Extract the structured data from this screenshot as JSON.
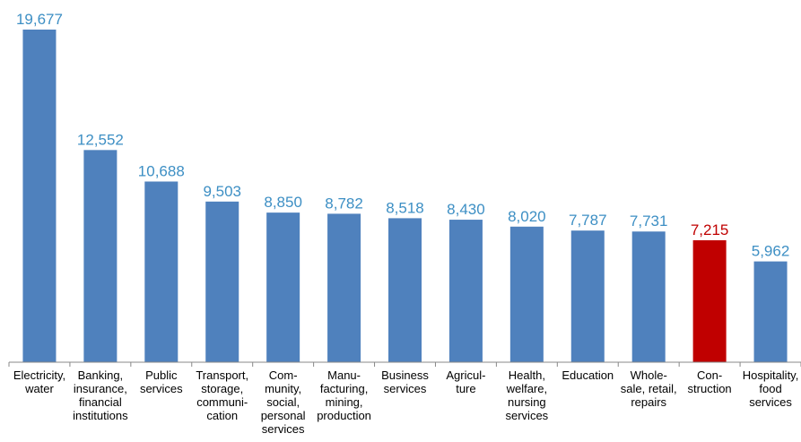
{
  "chart_data": {
    "type": "bar",
    "title": "",
    "xlabel": "",
    "ylabel": "",
    "ylim": [
      0,
      19677
    ],
    "grid": false,
    "legend": "none",
    "categories": [
      [
        "Electricity,",
        "water"
      ],
      [
        "Banking,",
        "insurance,",
        "financial",
        "institutions"
      ],
      [
        "Public",
        "services"
      ],
      [
        "Transport,",
        "storage,",
        "communi-",
        "cation"
      ],
      [
        "Com-",
        "munity,",
        "social,",
        "personal",
        "services"
      ],
      [
        "Manu-",
        "facturing,",
        "mining,",
        "production"
      ],
      [
        "Business",
        "services"
      ],
      [
        "Agricul-",
        "ture"
      ],
      [
        "Health,",
        "welfare,",
        "nursing",
        "services"
      ],
      [
        "Education"
      ],
      [
        "Whole-",
        "sale, retail,",
        "repairs"
      ],
      [
        "Con-",
        "struction"
      ],
      [
        "Hospitality,",
        "food",
        "services"
      ]
    ],
    "values": [
      19677,
      12552,
      10688,
      9503,
      8850,
      8782,
      8518,
      8430,
      8020,
      7787,
      7731,
      7215,
      5962
    ],
    "value_labels": [
      "19,677",
      "12,552",
      "10,688",
      "9,503",
      "8,850",
      "8,782",
      "8,518",
      "8,430",
      "8,020",
      "7,787",
      "7,731",
      "7,215",
      "5,962"
    ],
    "highlight_index": 11,
    "colors": {
      "bar": "#4F81BD",
      "highlight_bar": "#C00000",
      "value_label": "#3D8FC4",
      "highlight_value_label": "#C00000",
      "axis": "#888888"
    }
  }
}
